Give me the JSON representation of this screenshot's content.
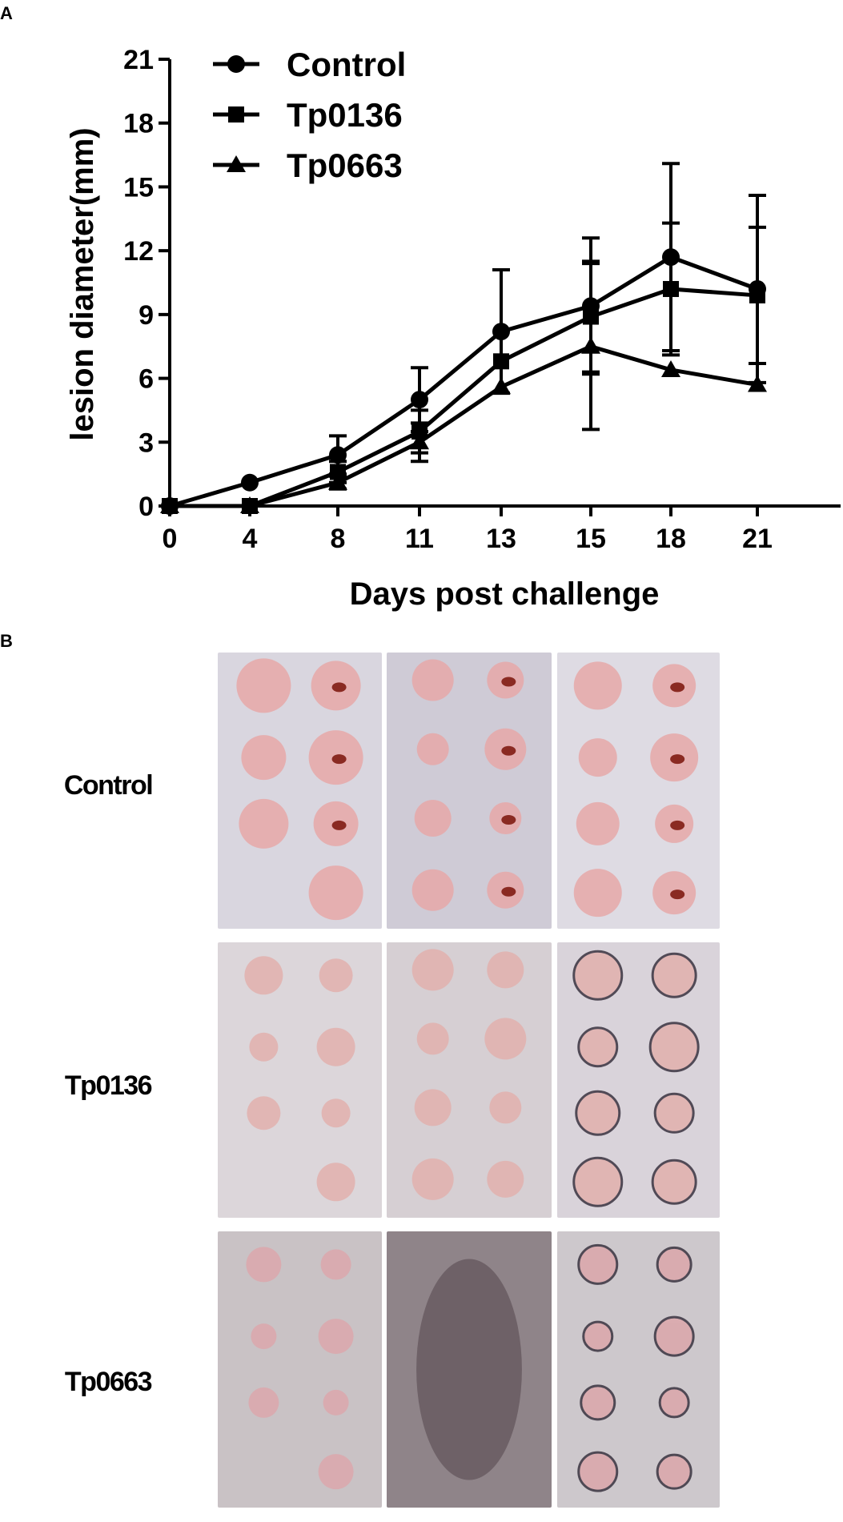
{
  "panels": {
    "a": "A",
    "b": "B"
  },
  "chart_data": {
    "type": "line",
    "title": "",
    "xlabel": "Days post challenge",
    "ylabel": "lesion diameter(mm)",
    "x": [
      0,
      4,
      8,
      11,
      13,
      15,
      18,
      21
    ],
    "x_tick_labels": [
      "0",
      "4",
      "8",
      "11",
      "13",
      "15",
      "18",
      "21"
    ],
    "y_ticks": [
      0,
      3,
      6,
      9,
      12,
      15,
      18,
      21
    ],
    "y_tick_labels": [
      "0",
      "3",
      "6",
      "9",
      "12",
      "15",
      "18",
      "21"
    ],
    "ylim": [
      0,
      21
    ],
    "legend_position": "top-left",
    "series": [
      {
        "name": "Control",
        "marker": "circle",
        "values": [
          0,
          1.1,
          2.4,
          5.0,
          8.2,
          9.4,
          11.7,
          10.2
        ],
        "error": [
          0,
          0,
          0.9,
          1.5,
          2.9,
          3.2,
          4.4,
          4.4
        ]
      },
      {
        "name": "Tp0136",
        "marker": "square",
        "values": [
          0,
          0,
          1.6,
          3.5,
          6.8,
          8.9,
          10.2,
          9.9
        ],
        "error": [
          0,
          0,
          0.5,
          1.0,
          0,
          2.6,
          3.1,
          3.2
        ]
      },
      {
        "name": "Tp0663",
        "marker": "triangle",
        "values": [
          0,
          0,
          1.1,
          3.0,
          5.6,
          7.5,
          6.4,
          5.7
        ],
        "error": [
          0,
          0,
          0.3,
          0.9,
          0,
          3.9,
          0,
          0
        ]
      }
    ]
  },
  "photo_grid": {
    "rows": [
      {
        "label": "Control"
      },
      {
        "label": "Tp0136"
      },
      {
        "label": "Tp0663"
      }
    ]
  }
}
